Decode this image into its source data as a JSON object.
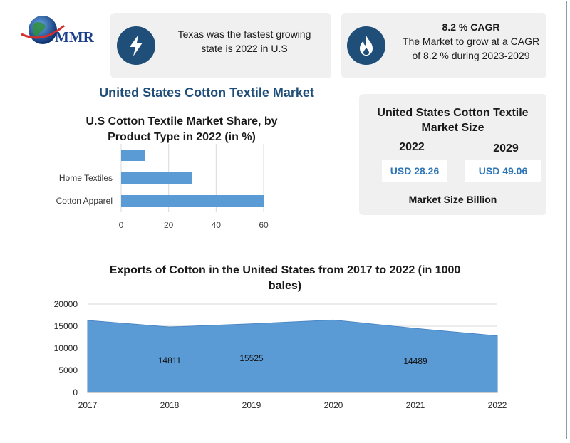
{
  "brand": {
    "logo_text": "MMR"
  },
  "colors": {
    "accent_dark": "#1f4e79",
    "bar_blue": "#5b9bd5",
    "value_blue": "#2e75b6"
  },
  "highlight_fastest": {
    "icon": "lightning-icon",
    "line1": "Texas was the fastest growing",
    "line2": "state is 2022 in U.S"
  },
  "highlight_cagr": {
    "icon": "flame-icon",
    "title": "8.2 % CAGR",
    "line1": "The Market to grow at a CAGR",
    "line2": "of 8.2 % during 2023-2029"
  },
  "main_title": "United States Cotton Textile Market",
  "market_size": {
    "title_line1": "United States Cotton Textile",
    "title_line2": "Market Size",
    "year_a": "2022",
    "year_b": "2029",
    "value_a": "USD 28.26",
    "value_b": "USD 49.06",
    "unit_label": "Market Size Billion"
  },
  "chart_data": [
    {
      "type": "bar",
      "orientation": "horizontal",
      "title": "U.S Cotton Textile Market Share, by Product Type in 2022 (in %)",
      "title_line1": "U.S Cotton Textile Market Share, by",
      "title_line2": "Product Type in 2022 (in %)",
      "categories": [
        "",
        "Home Textiles",
        "Cotton Apparel"
      ],
      "values": [
        10,
        30,
        60
      ],
      "xlim": [
        0,
        60
      ],
      "xticks": [
        "0",
        "20",
        "40",
        "60"
      ],
      "grid": true
    },
    {
      "type": "area",
      "title": "Exports of Cotton in the United States from 2017 to 2022 (in 1000 bales)",
      "title_line1": "Exports of Cotton in the United States from 2017 to 2022 (in 1000",
      "title_line2": "bales)",
      "x": [
        "2017",
        "2018",
        "2019",
        "2020",
        "2021",
        "2022"
      ],
      "values": [
        16300,
        14811,
        15525,
        16400,
        14489,
        12800
      ],
      "data_labels": [
        "",
        "14811",
        "15525",
        "",
        "14489",
        ""
      ],
      "ylim": [
        0,
        20000
      ],
      "yticks": [
        "0",
        "5000",
        "10000",
        "15000",
        "20000"
      ]
    }
  ]
}
